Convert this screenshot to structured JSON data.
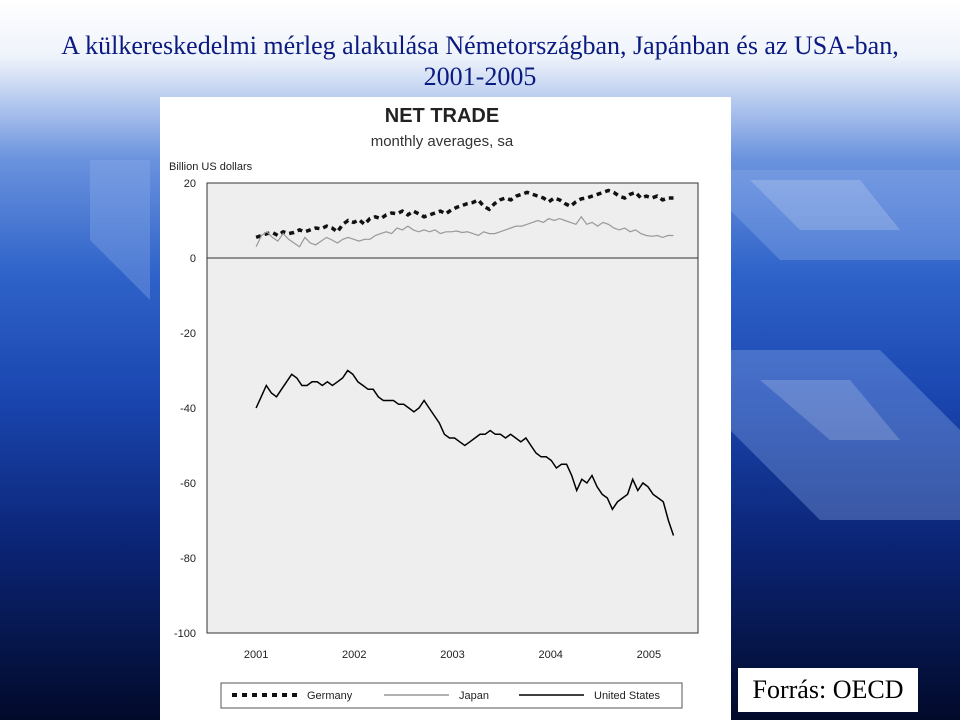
{
  "slide": {
    "title_line1": "A külkereskedelmi mérleg alakulása Németországban, Japánban és az USA-ban,",
    "title_line2": "2001-2005",
    "source": "Forrás: OECD"
  },
  "colors": {
    "title": "#0a1a80",
    "germany": "#111111",
    "japan": "#999999",
    "united_states": "#000000",
    "plot_bg": "#eeeeee"
  },
  "chart_data": {
    "type": "line",
    "title": "NET TRADE",
    "subtitle": "monthly averages, sa",
    "ylabel": "Billion US dollars",
    "xlabel": "",
    "ylim": [
      -100,
      20
    ],
    "xlim": [
      2000.5,
      2005.5
    ],
    "yticks": [
      "20",
      "0",
      "-20",
      "-40",
      "-60",
      "-80",
      "-100"
    ],
    "xticks": [
      "2001",
      "2002",
      "2003",
      "2004",
      "2005"
    ],
    "legend_position": "bottom",
    "grid": false,
    "series": [
      {
        "name": "Germany",
        "style": "dashed",
        "values": [
          5.5,
          6.0,
          6.5,
          6.8,
          6.0,
          7.0,
          6.5,
          6.8,
          7.5,
          7.0,
          7.5,
          8.0,
          7.8,
          8.5,
          8.0,
          7.0,
          9.0,
          10.0,
          9.5,
          10.2,
          9.0,
          10.5,
          11.0,
          10.5,
          11.5,
          12.0,
          11.8,
          12.5,
          11.5,
          12.5,
          11.8,
          11.0,
          11.5,
          12.0,
          12.5,
          11.8,
          12.8,
          13.5,
          14.0,
          14.5,
          14.8,
          15.5,
          13.8,
          13.0,
          14.5,
          15.5,
          16.0,
          15.5,
          16.5,
          17.0,
          17.5,
          17.0,
          16.5,
          16.0,
          15.0,
          16.0,
          15.5,
          14.5,
          13.8,
          15.0,
          15.8,
          16.0,
          16.5,
          17.0,
          17.5,
          18.0,
          17.5,
          16.5,
          16.0,
          17.0,
          17.5,
          16.0,
          16.5,
          16.0,
          16.5,
          15.5,
          16.0,
          16.0
        ]
      },
      {
        "name": "Japan",
        "style": "solid",
        "values": [
          3.0,
          6.0,
          7.0,
          5.5,
          4.5,
          6.5,
          5.0,
          4.0,
          3.0,
          5.5,
          4.0,
          3.5,
          4.5,
          5.5,
          4.8,
          4.0,
          5.0,
          5.5,
          5.0,
          4.5,
          5.0,
          5.0,
          6.0,
          6.5,
          7.0,
          6.5,
          8.0,
          7.5,
          8.5,
          7.5,
          7.0,
          7.5,
          7.0,
          7.5,
          6.5,
          7.0,
          7.0,
          7.2,
          6.8,
          7.0,
          6.5,
          6.0,
          7.0,
          6.5,
          6.5,
          7.0,
          7.5,
          8.0,
          8.5,
          8.5,
          9.0,
          9.5,
          10.0,
          9.5,
          10.5,
          10.0,
          10.5,
          10.0,
          9.5,
          9.0,
          11.0,
          9.0,
          9.5,
          8.5,
          9.5,
          9.0,
          8.0,
          7.5,
          8.0,
          7.0,
          7.5,
          6.5,
          6.0,
          5.8,
          6.0,
          5.5,
          6.0,
          6.0
        ]
      },
      {
        "name": "United States",
        "style": "solid",
        "values": [
          -40,
          -37,
          -34,
          -36,
          -37,
          -35,
          -33,
          -31,
          -32,
          -34,
          -34,
          -33,
          -33,
          -34,
          -33,
          -34,
          -33,
          -32,
          -30,
          -31,
          -33,
          -34,
          -35,
          -35,
          -37,
          -38,
          -38,
          -38,
          -39,
          -39,
          -40,
          -41,
          -40,
          -38,
          -40,
          -42,
          -44,
          -47,
          -48,
          -48,
          -49,
          -50,
          -49,
          -48,
          -47,
          -47,
          -46,
          -47,
          -47,
          -48,
          -47,
          -48,
          -49,
          -48,
          -50,
          -52,
          -53,
          -53,
          -54,
          -56,
          -55,
          -55,
          -58,
          -62,
          -59,
          -60,
          -58,
          -61,
          -63,
          -64,
          -67,
          -65,
          -64,
          -63,
          -59,
          -62,
          -60,
          -61,
          -63,
          -64,
          -65,
          -70,
          -74
        ]
      }
    ]
  }
}
